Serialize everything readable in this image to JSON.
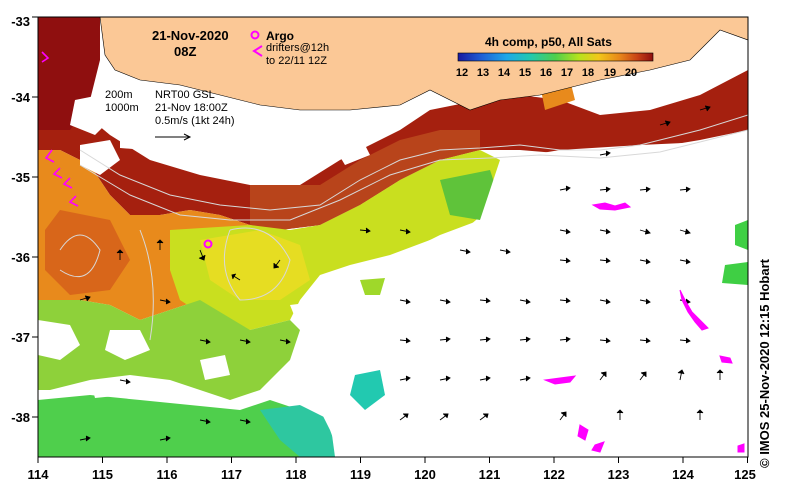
{
  "header": {
    "date": "21-Nov-2020",
    "time": "08Z",
    "legend_title": "4h comp, p50, All Sats"
  },
  "legend": {
    "argo_label": "Argo",
    "drifters_line1": "drifters@12h",
    "drifters_line2": "to 22/11 12Z",
    "colorbar_ticks": [
      "12",
      "13",
      "14",
      "15",
      "16",
      "17",
      "18",
      "19",
      "20"
    ],
    "colorbar_colors": [
      "#1a1aa0",
      "#1f5fd6",
      "#1ea8e8",
      "#22c9b0",
      "#4fcf4c",
      "#b7e31c",
      "#f2c81a",
      "#e8861a",
      "#c84216",
      "#8f0f0f"
    ]
  },
  "info": {
    "contour1": "200m",
    "contour2": "1000m",
    "model": "NRT00 GSL",
    "model_time": "21-Nov 18:00Z",
    "scale": "0.5m/s (1kt 24h)"
  },
  "axes": {
    "x_ticks": [
      "114",
      "115",
      "116",
      "117",
      "118",
      "119",
      "120",
      "121",
      "122",
      "123",
      "124",
      "125"
    ],
    "y_ticks": [
      "-33",
      "-34",
      "-35",
      "-36",
      "-37",
      "-38"
    ],
    "x_range": [
      114,
      125
    ],
    "y_range": [
      -38.5,
      -33
    ]
  },
  "credit": "© IMOS 25-Nov-2020 12:15 Hobart",
  "colors": {
    "land": "#fbc896",
    "argo": "#ff00ff",
    "drifter": "#ff00ff"
  }
}
